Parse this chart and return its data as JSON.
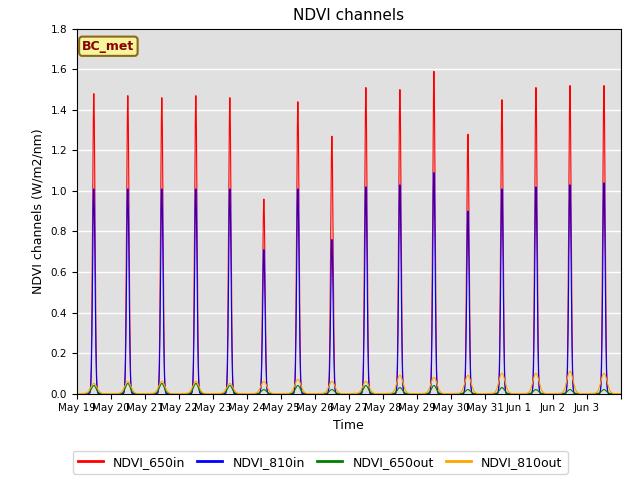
{
  "title": "NDVI channels",
  "ylabel": "NDVI channels (W/m2/nm)",
  "xlabel": "Time",
  "ylim": [
    0,
    1.8
  ],
  "annotation": "BC_met",
  "legend": [
    "NDVI_650in",
    "NDVI_810in",
    "NDVI_650out",
    "NDVI_810out"
  ],
  "colors": [
    "red",
    "blue",
    "green",
    "orange"
  ],
  "background_color": "#e0e0e0",
  "x_tick_labels": [
    "May 19",
    "May 20",
    "May 21",
    "May 22",
    "May 23",
    "May 24",
    "May 25",
    "May 26",
    "May 27",
    "May 28",
    "May 29",
    "May 30",
    "May 31",
    "Jun 1",
    "Jun 2",
    "Jun 3"
  ],
  "peak_650in": [
    1.48,
    1.47,
    1.46,
    1.47,
    1.46,
    0.96,
    1.44,
    1.27,
    1.51,
    1.5,
    1.59,
    1.28,
    1.45,
    1.51,
    1.52,
    1.52
  ],
  "peak_810in": [
    1.01,
    1.01,
    1.01,
    1.01,
    1.01,
    0.71,
    1.01,
    0.76,
    1.02,
    1.03,
    1.09,
    0.9,
    1.01,
    1.02,
    1.03,
    1.04
  ],
  "peak_650out": [
    0.04,
    0.05,
    0.05,
    0.05,
    0.04,
    0.02,
    0.04,
    0.02,
    0.04,
    0.03,
    0.04,
    0.02,
    0.03,
    0.02,
    0.02,
    0.02
  ],
  "peak_810out": [
    0.05,
    0.06,
    0.06,
    0.06,
    0.05,
    0.06,
    0.07,
    0.06,
    0.06,
    0.09,
    0.08,
    0.09,
    0.1,
    0.1,
    0.11,
    0.1
  ],
  "title_fontsize": 11,
  "axis_fontsize": 9,
  "legend_fontsize": 9,
  "tick_fontsize": 7.5
}
